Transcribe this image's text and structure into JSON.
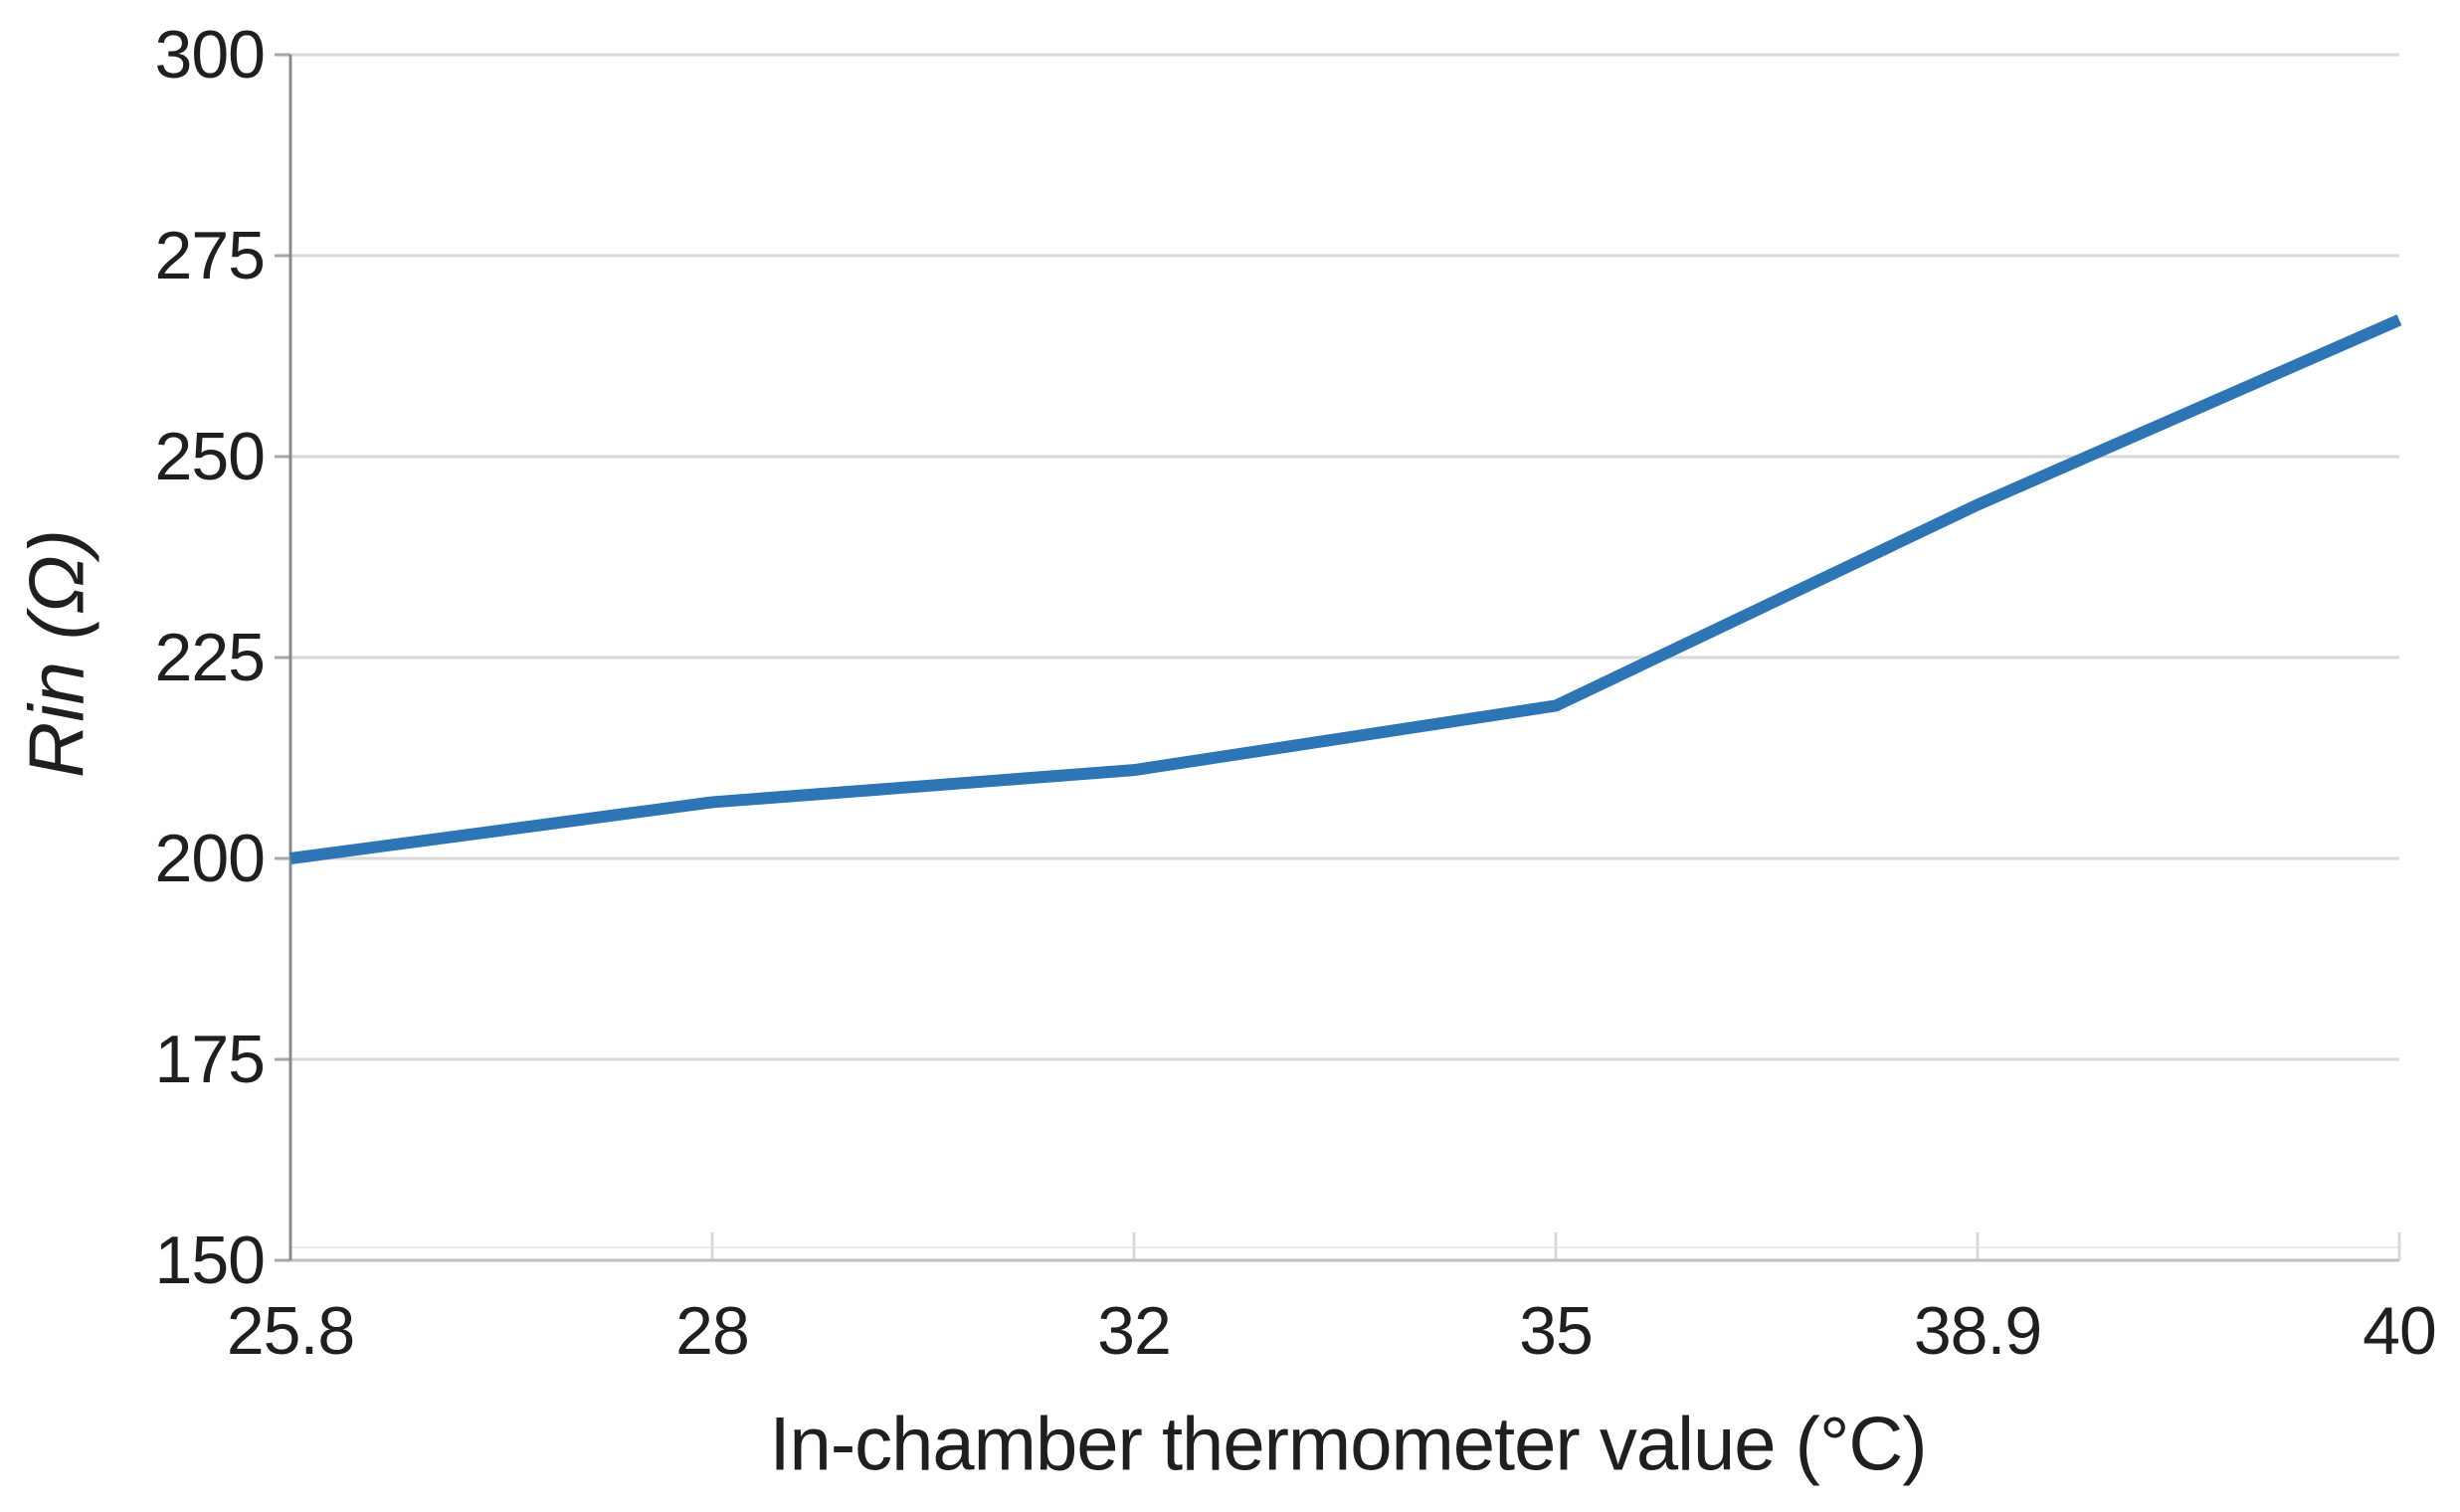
{
  "chart_data": {
    "type": "line",
    "title": "",
    "categories": [
      "25.8",
      "28",
      "32",
      "35",
      "38.9",
      "40"
    ],
    "series": [
      {
        "name": "Rin",
        "values": [
          200,
          207,
          211,
          219,
          244,
          267
        ]
      }
    ],
    "xlabel": "In-chamber thermometer value (°C)",
    "ylabel": "Rin (Ω)",
    "ylim": [
      150,
      300
    ],
    "yticks": [
      "150",
      "175",
      "200",
      "225",
      "250",
      "275",
      "300"
    ],
    "x_axis_type": "category-evenly-spaced",
    "grid": "horizontal",
    "legend_position": "none",
    "colors": {
      "line": "#2E75B6",
      "gridline": "#D9D9D9",
      "y_axis": "#8C8C8C",
      "x_axis": "#BFBFBF",
      "tick_mark": "#A6A6A6",
      "text": "#1F1F1F"
    }
  }
}
